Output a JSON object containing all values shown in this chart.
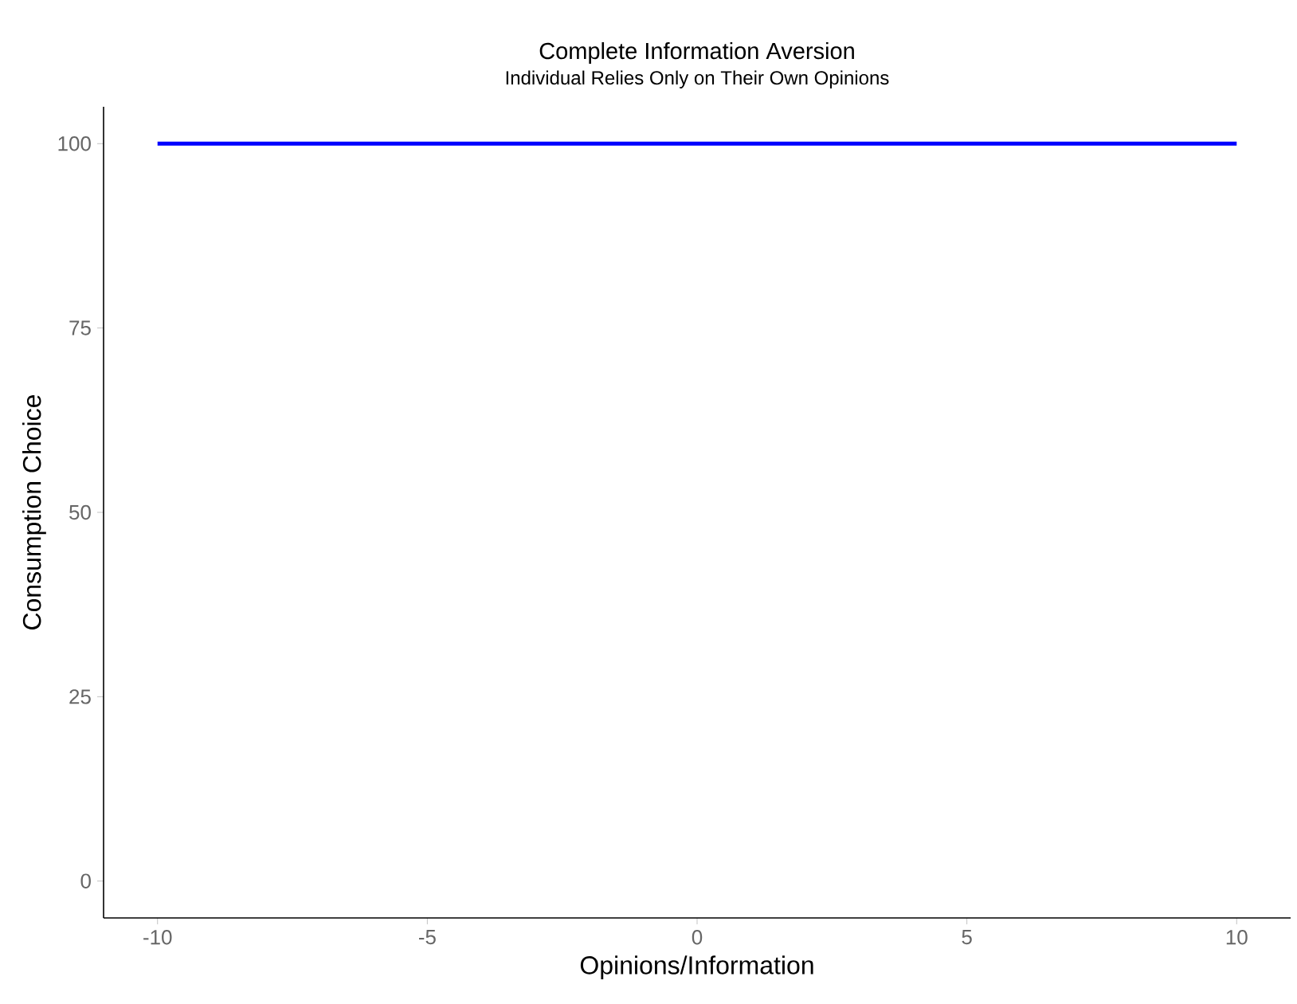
{
  "chart_data": {
    "type": "line",
    "title": "Complete Information Aversion",
    "subtitle": "Individual Relies Only on Their Own Opinions",
    "xlabel": "Opinions/Information",
    "ylabel": "Consumption Choice",
    "x": [
      -10,
      10
    ],
    "series": [
      {
        "color": "#0000ff",
        "values": [
          100,
          100
        ]
      }
    ],
    "xlim": [
      -11,
      11
    ],
    "ylim": [
      -5,
      105
    ],
    "xticks": [
      -10,
      -5,
      0,
      5,
      10
    ],
    "yticks": [
      0,
      25,
      50,
      75,
      100
    ],
    "grid": false,
    "marker": "none",
    "line_style": "solid"
  }
}
